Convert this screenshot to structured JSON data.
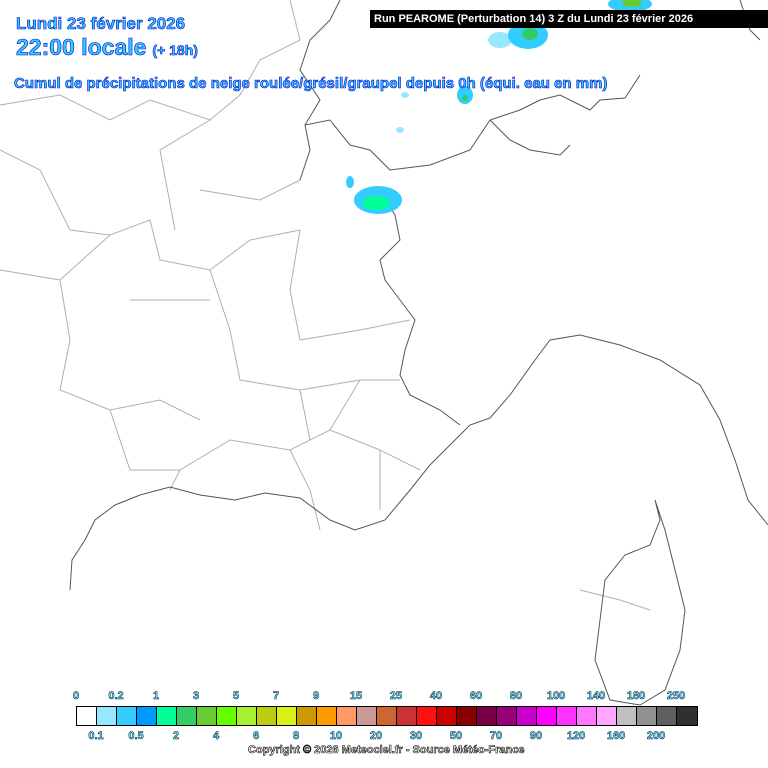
{
  "header": {
    "date": "Lundi 23 février 2026",
    "time": "22:00 locale",
    "offset": "(+ 18h)",
    "description": "Cumul de précipitations de neige roulée/grésil/graupel depuis 0h (équi. eau en mm)",
    "run": "Run PEAROME (Perturbation 14) 3 Z du Lundi 23 février 2026"
  },
  "legend": {
    "top_labels": [
      "0",
      "0.2",
      "1",
      "3",
      "5",
      "7",
      "9",
      "15",
      "25",
      "40",
      "60",
      "80",
      "100",
      "140",
      "180",
      "250"
    ],
    "bottom_labels": [
      "0.1",
      "0.5",
      "2",
      "4",
      "6",
      "8",
      "10",
      "20",
      "30",
      "50",
      "70",
      "90",
      "120",
      "160",
      "200"
    ],
    "colors": [
      "#ffffff",
      "#99e6ff",
      "#33ccff",
      "#0099ff",
      "#00ff99",
      "#33cc66",
      "#66cc33",
      "#66ff00",
      "#a6f032",
      "#bbcc11",
      "#d9f016",
      "#cc9900",
      "#ff9900",
      "#ff9966",
      "#cc9999",
      "#cc6633",
      "#cc3333",
      "#ff1111",
      "#cc0000",
      "#880000",
      "#770044",
      "#990077",
      "#cc00cc",
      "#ff00ff",
      "#ff33ff",
      "#ff77ff",
      "#ffa6ff",
      "#c0c0c0",
      "#909090",
      "#606060",
      "#303030"
    ]
  },
  "copyright": "Copyright © 2026 Meteociel.fr - Source Météo-France"
}
